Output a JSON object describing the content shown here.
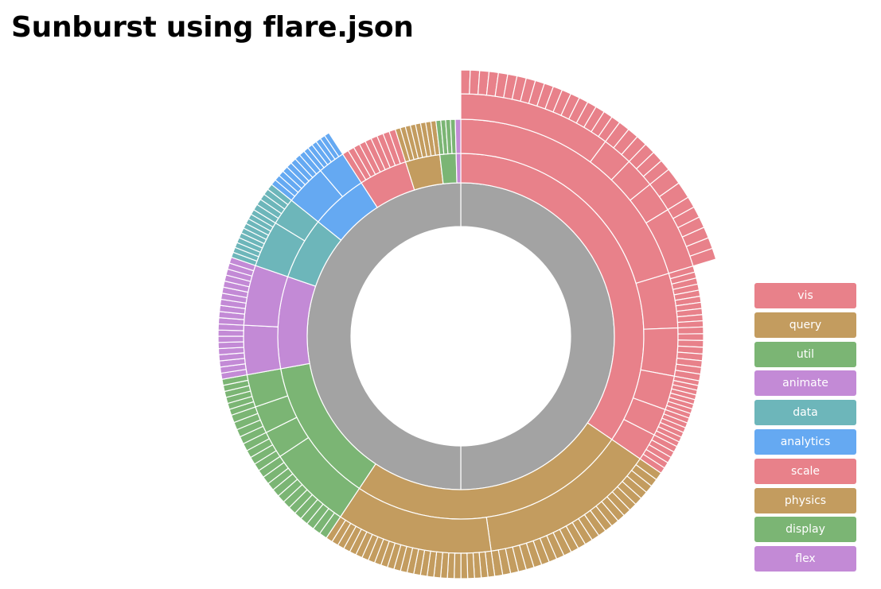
{
  "page": {
    "title": "Sunburst using flare.json"
  },
  "colors": {
    "root": "#a3a3a3",
    "palette": [
      "#e8818a",
      "#c39c5f",
      "#7bb574",
      "#c38ad6",
      "#6db6ba",
      "#65a9f2"
    ]
  },
  "chart_data": {
    "type": "sunburst",
    "title": "Sunburst using flare.json",
    "legend": {
      "position": "bottom-right",
      "items": [
        {
          "label": "vis",
          "color": "#e8818a"
        },
        {
          "label": "query",
          "color": "#c39c5f"
        },
        {
          "label": "util",
          "color": "#7bb574"
        },
        {
          "label": "animate",
          "color": "#c38ad6"
        },
        {
          "label": "data",
          "color": "#6db6ba"
        },
        {
          "label": "analytics",
          "color": "#65a9f2"
        },
        {
          "label": "scale",
          "color": "#e8818a"
        },
        {
          "label": "physics",
          "color": "#c39c5f"
        },
        {
          "label": "display",
          "color": "#7bb574"
        },
        {
          "label": "flex",
          "color": "#c38ad6"
        }
      ]
    },
    "sectors": [
      {
        "name": "vis",
        "value": 34.0,
        "children": [
          {
            "value": 20,
            "children": [
              {
                "value": 10,
                "leaves": 18
              },
              {
                "value": 2,
                "leaves": 3
              },
              {
                "value": 2,
                "leaves": 3
              },
              {
                "value": 2,
                "leaves": 2
              },
              {
                "value": 4,
                "leaves": 6
              }
            ]
          },
          {
            "value": 4,
            "leaves": 10
          },
          {
            "value": 3.5,
            "leaves": 8
          },
          {
            "value": 2.5,
            "leaves": 8
          },
          {
            "value": 2,
            "leaves": 6
          },
          {
            "value": 2,
            "leaves": 5
          }
        ]
      },
      {
        "name": "query",
        "value": 24.4,
        "children": [
          {
            "value": 13,
            "leaves": 25
          },
          {
            "value": 11.4,
            "leaves": 26
          }
        ]
      },
      {
        "name": "util",
        "value": 12.6,
        "children": [
          {
            "value": 6.2,
            "leaves": 12
          },
          {
            "value": 2.0,
            "leaves": 4
          },
          {
            "value": 2.0,
            "leaves": 4
          },
          {
            "value": 2.4,
            "leaves": 6
          }
        ]
      },
      {
        "name": "animate",
        "value": 8.0,
        "children": [
          {
            "value": 3.6,
            "leaves": 9
          },
          {
            "value": 4.4,
            "leaves": 11
          }
        ]
      },
      {
        "name": "data",
        "value": 5.4,
        "children": [
          {
            "value": 3.4,
            "leaves": 10
          },
          {
            "value": 2.0,
            "leaves": 5
          }
        ]
      },
      {
        "name": "analytics",
        "value": 5.0,
        "children": [
          {
            "value": 3.0,
            "leaves": 8
          },
          {
            "value": 2.0,
            "leaves": 6
          }
        ]
      },
      {
        "name": "scale",
        "value": 4.2,
        "leaves": 9
      },
      {
        "name": "physics",
        "value": 3.0,
        "leaves": 8
      },
      {
        "name": "display",
        "value": 1.4,
        "leaves": 4
      },
      {
        "name": "flex",
        "value": 0.4,
        "leaves": 1
      }
    ]
  }
}
